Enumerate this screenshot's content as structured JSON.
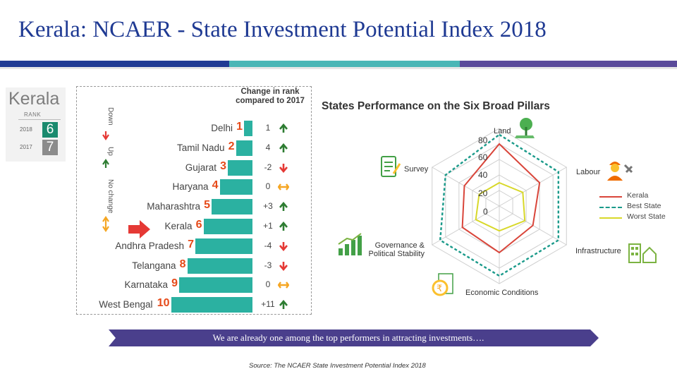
{
  "slide": {
    "title": "Kerala: NCAER - State Investment Potential Index 2018",
    "colors": {
      "band1": "#1f3a93",
      "band2": "#4ab6b6",
      "band3": "#5a4a9a",
      "accent_rank": "#e64a19",
      "bar": "#2bb1a1"
    }
  },
  "kerala_card": {
    "name": "Kerala",
    "rank_label": "RANK",
    "years": [
      {
        "year": "2018",
        "rank": "6",
        "color": "#1a8a6e"
      },
      {
        "year": "2017",
        "rank": "7",
        "color": "#8c8c8c"
      }
    ]
  },
  "ranking": {
    "header": "Change in rank compared to 2017",
    "legend": [
      "Down",
      "Up",
      "No change"
    ],
    "rows": [
      {
        "state": "Delhi",
        "rank": "1",
        "change": "1",
        "dir": "up"
      },
      {
        "state": "Tamil Nadu",
        "rank": "2",
        "change": "4",
        "dir": "up"
      },
      {
        "state": "Gujarat",
        "rank": "3",
        "change": "-2",
        "dir": "down"
      },
      {
        "state": "Haryana",
        "rank": "4",
        "change": "0",
        "dir": "same"
      },
      {
        "state": "Maharashtra",
        "rank": "5",
        "change": "+3",
        "dir": "up"
      },
      {
        "state": "Kerala",
        "rank": "6",
        "change": "+1",
        "dir": "up",
        "highlight": true
      },
      {
        "state": "Andhra Pradesh",
        "rank": "7",
        "change": "-4",
        "dir": "down"
      },
      {
        "state": "Telangana",
        "rank": "8",
        "change": "-3",
        "dir": "down"
      },
      {
        "state": "Karnataka",
        "rank": "9",
        "change": "0",
        "dir": "same"
      },
      {
        "state": "West Bengal",
        "rank": "10",
        "change": "+11",
        "dir": "up"
      }
    ]
  },
  "pillars": {
    "title": "States Performance on the Six Broad Pillars",
    "axes": [
      "Land",
      "Labour",
      "Infrastructure",
      "Economic Conditions",
      "Governance & Political Stability",
      "Survey"
    ],
    "scale": [
      "80",
      "60",
      "40",
      "20",
      "0"
    ],
    "legend": [
      {
        "name": "Kerala",
        "color": "#d9453a",
        "style": "solid"
      },
      {
        "name": "Best State",
        "color": "#1a9a8a",
        "style": "dashed"
      },
      {
        "name": "Worst State",
        "color": "#d8d82a",
        "style": "solid"
      }
    ],
    "series": [
      {
        "name": "Kerala",
        "values": [
          80,
          60,
          50,
          60,
          55,
          52
        ]
      },
      {
        "name": "Best State",
        "values": [
          92,
          88,
          88,
          90,
          88,
          80
        ]
      },
      {
        "name": "Worst State",
        "values": [
          30,
          35,
          38,
          32,
          35,
          30
        ]
      }
    ]
  },
  "banner": {
    "text": "We are already one among the top performers in attracting investments…."
  },
  "source": "Source: The NCAER State Investment Potential Index 2018"
}
